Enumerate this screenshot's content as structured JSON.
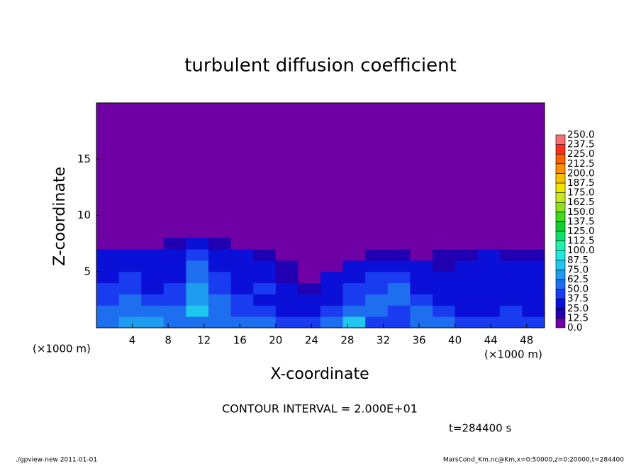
{
  "chart_data": {
    "type": "heatmap",
    "title": "turbulent diffusion coefficient",
    "x_label": "X-coordinate",
    "y_label": "Z-coordinate",
    "x_unit_label": "(×1000 m)",
    "y_unit_label": "(×1000 m)",
    "annotations": [
      "CONTOUR INTERVAL = 2.000E+01",
      "t=284400 s"
    ],
    "footer_left": "./gpview-new   2011-01-01",
    "footer_right": "MarsCond_Km.nc@Km,x=0:50000,z=0:20000,t=284400",
    "xlim": [
      0,
      50
    ],
    "xticks": [
      4,
      8,
      12,
      16,
      20,
      24,
      28,
      32,
      36,
      40,
      44,
      48
    ],
    "ylim": [
      0,
      20
    ],
    "yticks": [
      5,
      10,
      15
    ],
    "x": [
      1.25,
      3.75,
      6.25,
      8.75,
      11.25,
      13.75,
      16.25,
      18.75,
      21.25,
      23.75,
      26.25,
      28.75,
      31.25,
      33.75,
      36.25,
      38.75,
      41.25,
      43.75,
      46.25,
      48.75
    ],
    "y": [
      0.5,
      1.5,
      2.5,
      3.5,
      4.5,
      5.5,
      6.5,
      7.5
    ],
    "values": [
      [
        60,
        65,
        70,
        55,
        50,
        60,
        55,
        50,
        45,
        40,
        55,
        75,
        45,
        40,
        55,
        50,
        45,
        40,
        45,
        40
      ],
      [
        55,
        60,
        55,
        50,
        75,
        60,
        45,
        40,
        35,
        30,
        40,
        60,
        50,
        45,
        55,
        40,
        35,
        30,
        40,
        35
      ],
      [
        45,
        50,
        40,
        45,
        70,
        50,
        40,
        35,
        30,
        25,
        35,
        45,
        55,
        50,
        40,
        35,
        30,
        30,
        35,
        30
      ],
      [
        40,
        45,
        35,
        40,
        65,
        45,
        35,
        40,
        25,
        20,
        30,
        40,
        45,
        50,
        35,
        30,
        30,
        25,
        30,
        25
      ],
      [
        35,
        40,
        30,
        35,
        60,
        40,
        30,
        35,
        20,
        12,
        25,
        35,
        40,
        45,
        30,
        25,
        30,
        25,
        25,
        25
      ],
      [
        30,
        35,
        30,
        30,
        50,
        35,
        30,
        30,
        15,
        5,
        12,
        25,
        30,
        30,
        25,
        20,
        25,
        30,
        25,
        25
      ],
      [
        25,
        25,
        30,
        25,
        40,
        30,
        25,
        20,
        5,
        0,
        0,
        12,
        20,
        15,
        10,
        15,
        20,
        25,
        20,
        15
      ],
      [
        0,
        5,
        10,
        15,
        30,
        20,
        10,
        5,
        0,
        0,
        0,
        0,
        0,
        0,
        0,
        0,
        0,
        5,
        0,
        0
      ]
    ],
    "levels": [
      {
        "value": 0,
        "label": "0.0"
      },
      12.5,
      {
        "value": 25,
        "label": "25.0"
      },
      37.5,
      {
        "value": 50,
        "label": "50.0"
      },
      62.5,
      {
        "value": 75,
        "label": "75.0"
      },
      87.5,
      {
        "value": 100,
        "label": "100.0"
      },
      112.5,
      {
        "value": 125,
        "label": "125.0"
      },
      137.5,
      {
        "value": 150,
        "label": "150.0"
      },
      162.5,
      {
        "value": 175,
        "label": "175.0"
      },
      187.5,
      {
        "value": 200,
        "label": "200.0"
      },
      212.5,
      {
        "value": 225,
        "label": "225.0"
      },
      237.5,
      {
        "value": 250,
        "label": "250.0"
      }
    ],
    "colors": [
      "#6f00a6",
      "#2000b0",
      "#0a10d8",
      "#1a3cf0",
      "#1e6ef0",
      "#1e9cf0",
      "#20c8f0",
      "#20e8e0",
      "#20f0b0",
      "#10e070",
      "#10d030",
      "#40d820",
      "#90e020",
      "#c8e820",
      "#f0e800",
      "#f8c000",
      "#f89000",
      "#f86000",
      "#f83020",
      "#f87070"
    ]
  }
}
